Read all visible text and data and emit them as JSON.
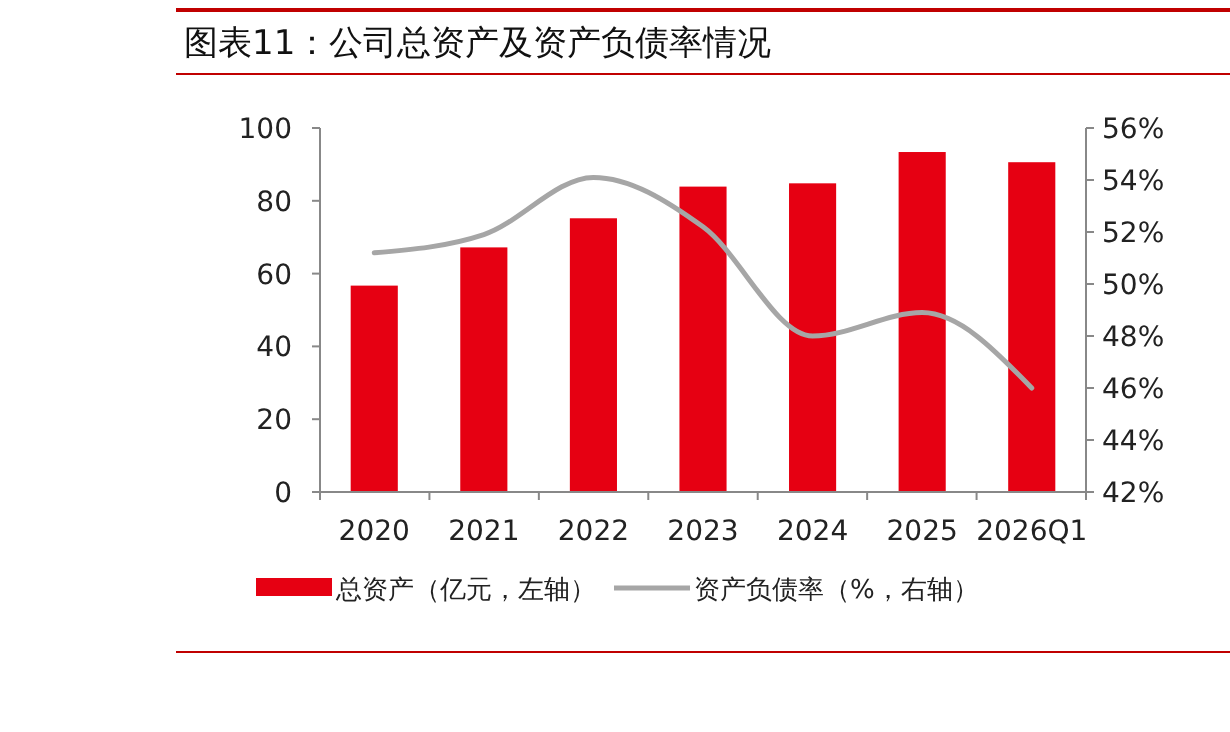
{
  "chart_data": {
    "type": "bar",
    "title": "图表11：公司总资产及资产负债率情况",
    "categories": [
      "2020",
      "2021",
      "2022",
      "2023",
      "2024",
      "2025",
      "2026Q1"
    ],
    "series": [
      {
        "name": "总资产（亿元，左轴）",
        "color": "#e60012",
        "values": [
          56.7,
          67.2,
          75.2,
          83.9,
          84.8,
          93.4,
          90.6
        ]
      },
      {
        "name": "资产负债率（%，右轴）",
        "type": "line",
        "axis": "y2",
        "color": "#a6a6a6",
        "values": [
          51.2,
          51.9,
          54.1,
          52.2,
          48.0,
          48.9,
          46.0
        ]
      }
    ],
    "ylim": [
      0,
      100
    ],
    "yticks": [
      0,
      20,
      40,
      60,
      80,
      100
    ],
    "y2lim": [
      42,
      56
    ],
    "y2ticks": [
      {
        "value": 42,
        "label": "42%"
      },
      {
        "value": 44,
        "label": "44%"
      },
      {
        "value": 46,
        "label": "46%"
      },
      {
        "value": 48,
        "label": "48%"
      },
      {
        "value": 50,
        "label": "50%"
      },
      {
        "value": 52,
        "label": "52%"
      },
      {
        "value": 54,
        "label": "54%"
      },
      {
        "value": 56,
        "label": "56%"
      }
    ],
    "legend": "bottom",
    "grid": false,
    "marker": "none"
  }
}
